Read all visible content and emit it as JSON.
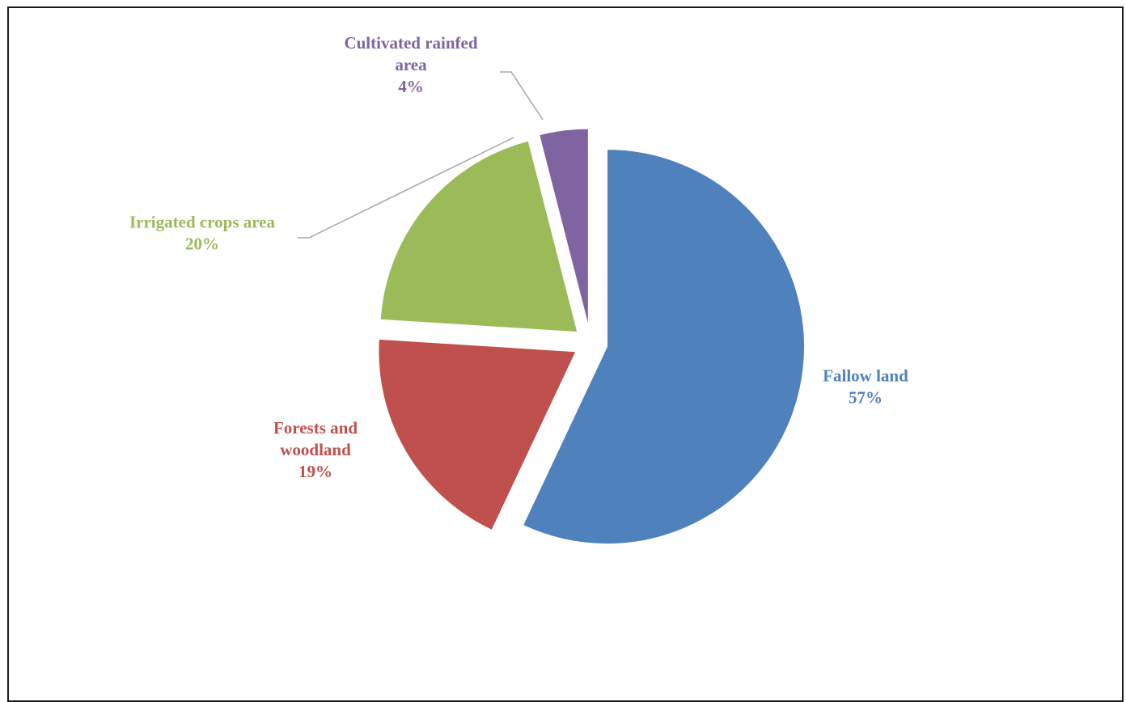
{
  "chart_data": {
    "type": "pie",
    "title": "",
    "exploded": true,
    "start_angle_deg": 0,
    "direction": "clockwise",
    "slices": [
      {
        "label": "Fallow land",
        "label_lines": [
          "Fallow land"
        ],
        "value": 57,
        "percent_text": "57%",
        "color": "#4F81BD",
        "leader_line": false
      },
      {
        "label": "Forests and woodland",
        "label_lines": [
          "Forests and",
          "woodland"
        ],
        "value": 19,
        "percent_text": "19%",
        "color": "#C0504D",
        "leader_line": false
      },
      {
        "label": "Irrigated crops area",
        "label_lines": [
          "Irrigated crops area"
        ],
        "value": 20,
        "percent_text": "20%",
        "color": "#9BBB59",
        "leader_line": true
      },
      {
        "label": "Cultivated rainfed area",
        "label_lines": [
          "Cultivated rainfed",
          "area"
        ],
        "value": 4,
        "percent_text": "4%",
        "color": "#8064A2",
        "leader_line": true
      }
    ]
  }
}
